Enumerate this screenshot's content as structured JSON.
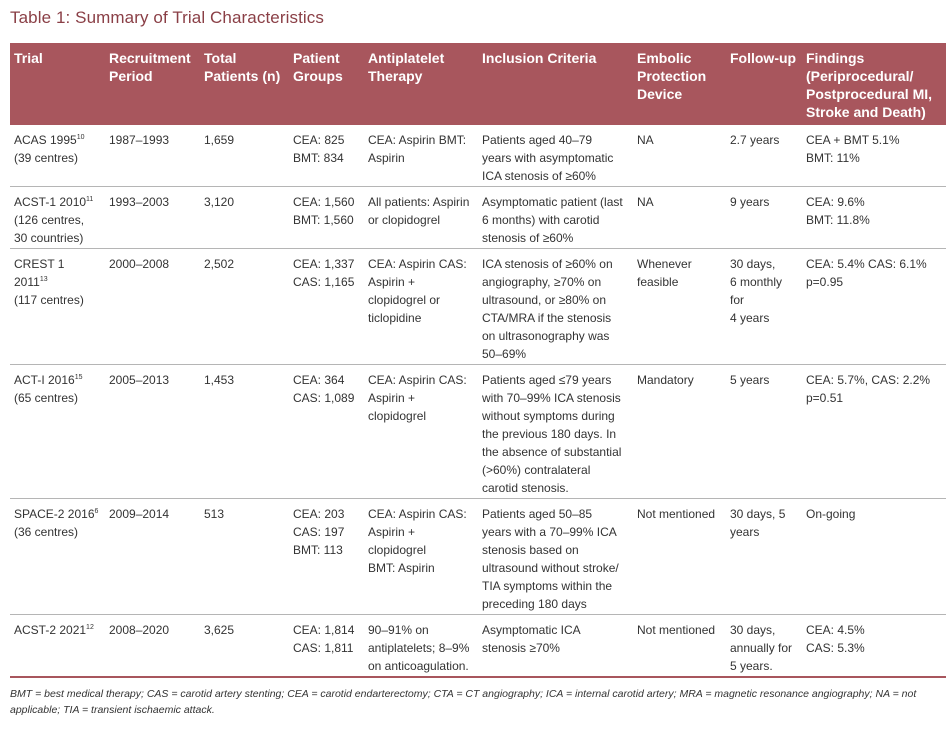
{
  "title": "Table 1: Summary of Trial Characteristics",
  "headers": [
    [
      "Trial"
    ],
    [
      "Recruitment",
      "Period"
    ],
    [
      "Total",
      "Patients (n)"
    ],
    [
      "Patient",
      "Groups"
    ],
    [
      "Antiplatelet",
      "Therapy"
    ],
    [
      "Inclusion Criteria"
    ],
    [
      "Embolic",
      "Protection",
      "Device"
    ],
    [
      "Follow-up"
    ],
    [
      "Findings",
      "(Periprocedural/",
      "Postprocedural MI,",
      "Stroke and Death)"
    ]
  ],
  "rows": [
    {
      "trial": "ACAS 1995",
      "ref": "10",
      "trial_extra": [
        "(39 centres)"
      ],
      "period": "1987–1993",
      "total": "1,659",
      "groups": [
        "CEA: 825",
        "BMT: 834"
      ],
      "therapy": [
        "CEA: Aspirin BMT:",
        "Aspirin"
      ],
      "criteria": [
        "Patients aged 40–79",
        "years with asymptomatic",
        "ICA stenosis of ≥60%"
      ],
      "device": [
        "NA"
      ],
      "followup": [
        "2.7 years"
      ],
      "findings": [
        "CEA + BMT 5.1%",
        "BMT: 11%"
      ]
    },
    {
      "trial": "ACST-1 2010",
      "ref": "11",
      "trial_extra": [
        "(126 centres,",
        "30 countries)"
      ],
      "period": "1993–2003",
      "total": "3,120",
      "groups": [
        "CEA: 1,560",
        "BMT: 1,560"
      ],
      "therapy": [
        "All patients: Aspirin",
        "or clopidogrel"
      ],
      "criteria": [
        "Asymptomatic patient (last",
        "6 months) with carotid",
        "stenosis of ≥60%"
      ],
      "device": [
        "NA"
      ],
      "followup": [
        "9 years"
      ],
      "findings": [
        "CEA: 9.6%",
        "BMT: 11.8%"
      ]
    },
    {
      "trial": "CREST 1 2011",
      "ref": "13",
      "trial_extra": [
        "(117 centres)"
      ],
      "period": "2000–2008",
      "total": "2,502",
      "groups": [
        "CEA: 1,337",
        "CAS: 1,165"
      ],
      "therapy": [
        "CEA: Aspirin CAS:",
        "Aspirin +",
        "clopidogrel or",
        "ticlopidine"
      ],
      "criteria": [
        "ICA stenosis of ≥60% on",
        "angiography, ≥70% on",
        "ultrasound, or ≥80% on",
        "CTA/MRA if the stenosis",
        "on ultrasonography was",
        "50–69%"
      ],
      "device": [
        "Whenever",
        "feasible"
      ],
      "followup": [
        "30 days,",
        "6 monthly for",
        "4 years"
      ],
      "findings": [
        "CEA: 5.4% CAS: 6.1%",
        "p=0.95"
      ]
    },
    {
      "trial": "ACT-I 2016",
      "ref": "15",
      "trial_extra": [
        "(65 centres)"
      ],
      "period": "2005–2013",
      "total": "1,453",
      "groups": [
        "CEA: 364",
        "CAS: 1,089"
      ],
      "therapy": [
        "CEA: Aspirin CAS:",
        "Aspirin +",
        "clopidogrel"
      ],
      "criteria": [
        "Patients aged ≤79 years",
        "with 70–99% ICA stenosis",
        "without symptoms during",
        "the previous 180 days. In",
        "the absence of substantial",
        "(>60%) contralateral",
        "carotid stenosis."
      ],
      "device": [
        "Mandatory"
      ],
      "followup": [
        "5 years"
      ],
      "findings": [
        "CEA: 5.7%, CAS: 2.2%",
        "p=0.51"
      ]
    },
    {
      "trial": "SPACE-2 2016",
      "ref": "6",
      "trial_extra": [
        "(36 centres)"
      ],
      "period": "2009–2014",
      "total": "513",
      "groups": [
        "CEA: 203",
        "CAS: 197",
        "BMT: 113"
      ],
      "therapy": [
        "CEA: Aspirin CAS:",
        "Aspirin +",
        "clopidogrel",
        "BMT: Aspirin"
      ],
      "criteria": [
        "Patients aged 50–85",
        "years with a 70–99% ICA",
        "stenosis based on",
        "ultrasound without stroke/",
        "TIA symptoms within the",
        "preceding 180 days"
      ],
      "device": [
        "Not mentioned"
      ],
      "followup": [
        "30 days, 5",
        "years"
      ],
      "findings": [
        "On-going"
      ]
    },
    {
      "trial": "ACST-2 2021",
      "ref": "12",
      "trial_extra": [],
      "period": "2008–2020",
      "total": "3,625",
      "groups": [
        "CEA: 1,814",
        "CAS: 1,811"
      ],
      "therapy": [
        "90–91% on",
        "antiplatelets; 8–9%",
        "on anticoagulation."
      ],
      "criteria": [
        "Asymptomatic ICA",
        "stenosis ≥70%"
      ],
      "device": [
        "Not mentioned"
      ],
      "followup": [
        "30 days,",
        "annually for",
        "5 years."
      ],
      "findings": [
        "CEA: 4.5%",
        "CAS: 5.3%"
      ]
    }
  ],
  "footnote": "BMT = best medical therapy; CAS = carotid artery stenting; CEA = carotid endarterectomy; CTA = CT angiography; ICA = internal carotid artery; MRA = magnetic resonance angiography; NA = not applicable; TIA = transient ischaemic attack."
}
